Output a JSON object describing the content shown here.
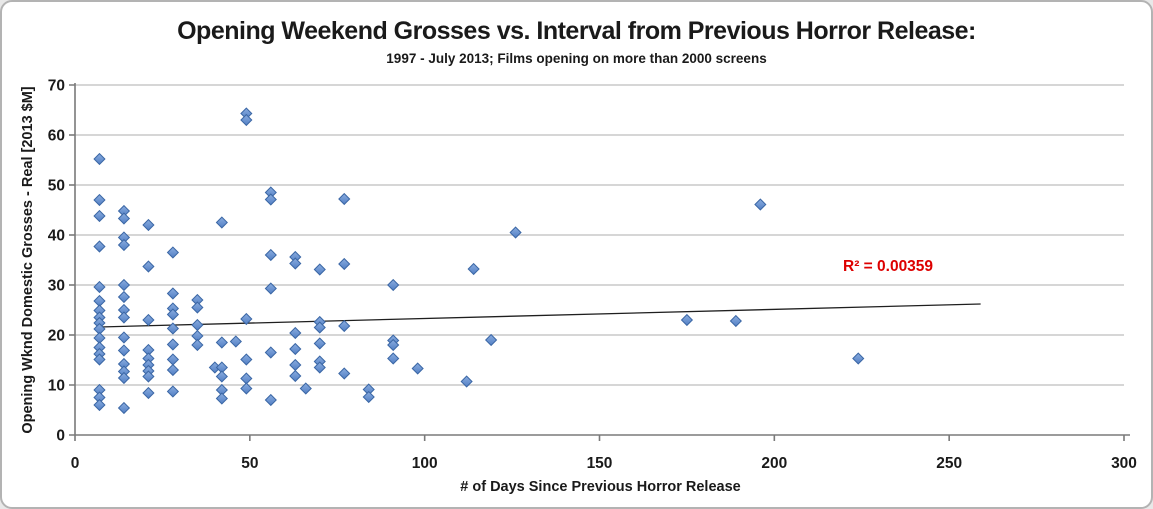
{
  "chart_data": {
    "type": "scatter",
    "title": "Opening Weekend Grosses vs. Interval from Previous Horror Release:",
    "subtitle": "1997 - July 2013; Films opening on more than 2000 screens",
    "xlabel": "# of Days Since Previous Horror Release",
    "ylabel": "Opening Wknd Domestic Grosses - Real [2013 $M]",
    "xlim": [
      0,
      300
    ],
    "ylim": [
      0,
      70
    ],
    "xticks": [
      0,
      50,
      100,
      150,
      200,
      250,
      300
    ],
    "yticks": [
      0,
      10,
      20,
      30,
      40,
      50,
      60,
      70
    ],
    "grid": "horizontal",
    "legend": "none",
    "marker": "diamond",
    "annotation": {
      "text": "R² = 0.00359",
      "color": "#dd0000"
    },
    "trendline": {
      "x1": 7,
      "y1": 21.6,
      "x2": 259,
      "y2": 26.2,
      "r_squared": 0.00359
    },
    "colors": {
      "point_fill_top": "#8aacdf",
      "point_fill_bottom": "#527fc4",
      "point_stroke": "#3b67a5",
      "gridline": "#c8c8c8",
      "axis": "#7a7a7a",
      "trendline": "#1f1f1f"
    },
    "series": [
      {
        "name": "Films opening on more than 2000 screens",
        "points": [
          [
            7,
            55.2
          ],
          [
            7,
            47
          ],
          [
            7,
            43.8
          ],
          [
            7,
            37.7
          ],
          [
            7,
            29.6
          ],
          [
            7,
            26.8
          ],
          [
            7,
            24.9
          ],
          [
            7,
            23.5
          ],
          [
            7,
            22.4
          ],
          [
            7,
            21.2
          ],
          [
            7,
            19.4
          ],
          [
            7,
            17.5
          ],
          [
            7,
            16.2
          ],
          [
            7,
            15.1
          ],
          [
            7,
            9
          ],
          [
            7,
            7.5
          ],
          [
            7,
            6
          ],
          [
            14,
            44.8
          ],
          [
            14,
            43.3
          ],
          [
            14,
            39.5
          ],
          [
            14,
            38
          ],
          [
            14,
            30
          ],
          [
            14,
            27.6
          ],
          [
            14,
            25
          ],
          [
            14,
            23.5
          ],
          [
            14,
            19.5
          ],
          [
            14,
            16.9
          ],
          [
            14,
            14.2
          ],
          [
            14,
            12.7
          ],
          [
            14,
            11.4
          ],
          [
            14,
            5.4
          ],
          [
            21,
            42
          ],
          [
            21,
            33.7
          ],
          [
            21,
            23
          ],
          [
            21,
            17
          ],
          [
            21,
            15.3
          ],
          [
            21,
            14
          ],
          [
            21,
            12.8
          ],
          [
            21,
            11.7
          ],
          [
            21,
            8.4
          ],
          [
            28,
            36.5
          ],
          [
            28,
            28.3
          ],
          [
            28,
            25.3
          ],
          [
            28,
            24.1
          ],
          [
            28,
            21.3
          ],
          [
            28,
            18.1
          ],
          [
            28,
            15.1
          ],
          [
            28,
            13
          ],
          [
            28,
            8.7
          ],
          [
            35,
            27
          ],
          [
            35,
            25.5
          ],
          [
            35,
            22
          ],
          [
            35,
            19.8
          ],
          [
            35,
            18
          ],
          [
            40,
            13.5
          ],
          [
            42,
            42.5
          ],
          [
            42,
            18.5
          ],
          [
            42,
            13.5
          ],
          [
            42,
            11.7
          ],
          [
            42,
            9
          ],
          [
            42,
            7.3
          ],
          [
            46,
            18.7
          ],
          [
            49,
            64.3
          ],
          [
            49,
            63
          ],
          [
            49,
            23.2
          ],
          [
            49,
            15.1
          ],
          [
            49,
            11.3
          ],
          [
            49,
            9.3
          ],
          [
            56,
            48.5
          ],
          [
            56,
            47.1
          ],
          [
            56,
            36
          ],
          [
            56,
            29.3
          ],
          [
            56,
            16.5
          ],
          [
            56,
            7
          ],
          [
            63,
            35.6
          ],
          [
            63,
            34.3
          ],
          [
            63,
            20.4
          ],
          [
            63,
            17.2
          ],
          [
            63,
            14
          ],
          [
            63,
            11.8
          ],
          [
            66,
            9.3
          ],
          [
            70,
            33.1
          ],
          [
            70,
            22.6
          ],
          [
            70,
            21.5
          ],
          [
            70,
            18.3
          ],
          [
            70,
            14.7
          ],
          [
            70,
            13.5
          ],
          [
            77,
            47.2
          ],
          [
            77,
            34.2
          ],
          [
            77,
            21.8
          ],
          [
            77,
            12.3
          ],
          [
            84,
            9.1
          ],
          [
            84,
            7.6
          ],
          [
            91,
            30
          ],
          [
            91,
            18.9
          ],
          [
            91,
            18
          ],
          [
            91,
            15.3
          ],
          [
            98,
            13.3
          ],
          [
            112,
            10.7
          ],
          [
            114,
            33.2
          ],
          [
            119,
            19
          ],
          [
            126,
            40.5
          ],
          [
            175,
            23
          ],
          [
            189,
            22.8
          ],
          [
            196,
            46.1
          ],
          [
            224,
            15.3
          ]
        ]
      }
    ]
  }
}
